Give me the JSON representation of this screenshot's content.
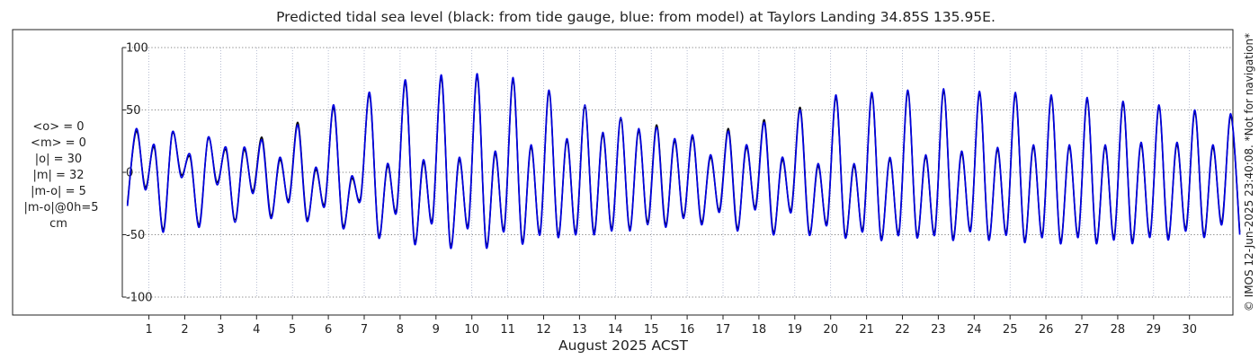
{
  "chart_data": {
    "type": "line",
    "title": "Predicted tidal sea level (black: from tide gauge, blue: from model) at Taylors Landing 34.85S 135.95E.",
    "xlabel": "August 2025 ACST",
    "ylabel": "",
    "xlim": [
      0.35,
      31.5
    ],
    "ylim": [
      -100,
      100
    ],
    "y_ticks": [
      -100,
      -50,
      0,
      50,
      100
    ],
    "x_ticks": [
      1,
      2,
      3,
      4,
      5,
      6,
      7,
      8,
      9,
      10,
      11,
      12,
      13,
      14,
      15,
      16,
      17,
      18,
      19,
      20,
      21,
      22,
      23,
      24,
      25,
      26,
      27,
      28,
      29,
      30
    ],
    "grid": true,
    "units": "cm",
    "series": [
      {
        "color": "#000000",
        "x": [
          0.4,
          0.65,
          0.9,
          1.15,
          1.4,
          1.65,
          1.9,
          2.15,
          2.4,
          2.65,
          2.9,
          3.15,
          3.4,
          3.65,
          3.9,
          4.15,
          4.4,
          4.65,
          4.9,
          5.15,
          5.4,
          5.65,
          5.9,
          6.15,
          6.4,
          6.65,
          6.9,
          7.15,
          7.4,
          7.65,
          7.9,
          8.15,
          8.4,
          8.65,
          8.9,
          9.15,
          9.4,
          9.65,
          9.9,
          10.15,
          10.4,
          10.65,
          10.9,
          11.15,
          11.4,
          11.65,
          11.9,
          12.15,
          12.4,
          12.65,
          12.9,
          13.15,
          13.4,
          13.65,
          13.9,
          14.15,
          14.4,
          14.65,
          14.9,
          15.15,
          15.4,
          15.65,
          15.9,
          16.15,
          16.4,
          16.65,
          16.9,
          17.15,
          17.4,
          17.65,
          17.9,
          18.15,
          18.4,
          18.65,
          18.9,
          19.15,
          19.4,
          19.65,
          19.9,
          20.15,
          20.4,
          20.65,
          20.9,
          21.15,
          21.4,
          21.65,
          21.9,
          22.15,
          22.4,
          22.65,
          22.9,
          23.15,
          23.4,
          23.65,
          23.9,
          24.15,
          24.4,
          24.65,
          24.9,
          25.15,
          25.4,
          25.65,
          25.9,
          26.15,
          26.4,
          26.65,
          26.9,
          27.15,
          27.4,
          27.65,
          27.9,
          28.15,
          28.4,
          28.65,
          28.9,
          29.15,
          29.4,
          29.65,
          29.9,
          30.15,
          30.4,
          30.65,
          30.9,
          31.15,
          31.4
        ],
        "values": [
          -25,
          33,
          -12,
          20,
          -46,
          31,
          -2,
          12,
          -42,
          27,
          -8,
          18,
          -38,
          18,
          -15,
          28,
          -35,
          10,
          -22,
          40,
          -37,
          2,
          -25,
          52,
          -42,
          -5,
          -20,
          62,
          -50,
          5,
          -30,
          72,
          -55,
          8,
          -38,
          76,
          -58,
          10,
          -42,
          77,
          -58,
          15,
          -45,
          74,
          -55,
          20,
          -48,
          64,
          -50,
          25,
          -48,
          52,
          -48,
          30,
          -45,
          42,
          -45,
          33,
          -40,
          38,
          -42,
          25,
          -35,
          28,
          -40,
          12,
          -30,
          35,
          -45,
          20,
          -28,
          42,
          -48,
          10,
          -30,
          52,
          -48,
          5,
          -40,
          60,
          -50,
          5,
          -45,
          62,
          -52,
          10,
          -48,
          64,
          -50,
          12,
          -48,
          65,
          -52,
          15,
          -45,
          63,
          -52,
          18,
          -48,
          62,
          -54,
          20,
          -50,
          60,
          -55,
          20,
          -50,
          58,
          -55,
          20,
          -52,
          55,
          -55,
          22,
          -50,
          52,
          -52,
          22,
          -45,
          48,
          -50,
          20,
          -40,
          45,
          -48
        ]
      },
      {
        "color": "#0000e0",
        "x": [
          0.4,
          0.65,
          0.9,
          1.15,
          1.4,
          1.65,
          1.9,
          2.15,
          2.4,
          2.65,
          2.9,
          3.15,
          3.4,
          3.65,
          3.9,
          4.15,
          4.4,
          4.65,
          4.9,
          5.15,
          5.4,
          5.65,
          5.9,
          6.15,
          6.4,
          6.65,
          6.9,
          7.15,
          7.4,
          7.65,
          7.9,
          8.15,
          8.4,
          8.65,
          8.9,
          9.15,
          9.4,
          9.65,
          9.9,
          10.15,
          10.4,
          10.65,
          10.9,
          11.15,
          11.4,
          11.65,
          11.9,
          12.15,
          12.4,
          12.65,
          12.9,
          13.15,
          13.4,
          13.65,
          13.9,
          14.15,
          14.4,
          14.65,
          14.9,
          15.15,
          15.4,
          15.65,
          15.9,
          16.15,
          16.4,
          16.65,
          16.9,
          17.15,
          17.4,
          17.65,
          17.9,
          18.15,
          18.4,
          18.65,
          18.9,
          19.15,
          19.4,
          19.65,
          19.9,
          20.15,
          20.4,
          20.65,
          20.9,
          21.15,
          21.4,
          21.65,
          21.9,
          22.15,
          22.4,
          22.65,
          22.9,
          23.15,
          23.4,
          23.65,
          23.9,
          24.15,
          24.4,
          24.65,
          24.9,
          25.15,
          25.4,
          25.65,
          25.9,
          26.15,
          26.4,
          26.65,
          26.9,
          27.15,
          27.4,
          27.65,
          27.9,
          28.15,
          28.4,
          28.65,
          28.9,
          29.15,
          29.4,
          29.65,
          29.9,
          30.15,
          30.4,
          30.65,
          30.9,
          31.15,
          31.4
        ],
        "values": [
          -27,
          35,
          -14,
          22,
          -48,
          32,
          -4,
          14,
          -44,
          28,
          -10,
          20,
          -40,
          20,
          -17,
          26,
          -37,
          12,
          -24,
          38,
          -39,
          4,
          -27,
          54,
          -44,
          -3,
          -22,
          64,
          -52,
          7,
          -32,
          74,
          -57,
          10,
          -40,
          78,
          -60,
          12,
          -44,
          79,
          -60,
          17,
          -47,
          76,
          -57,
          22,
          -50,
          66,
          -52,
          27,
          -50,
          54,
          -50,
          32,
          -47,
          44,
          -47,
          35,
          -42,
          36,
          -44,
          27,
          -37,
          30,
          -42,
          14,
          -32,
          33,
          -47,
          22,
          -30,
          40,
          -50,
          12,
          -32,
          50,
          -50,
          7,
          -42,
          62,
          -52,
          7,
          -47,
          64,
          -54,
          12,
          -50,
          66,
          -52,
          14,
          -50,
          67,
          -54,
          17,
          -47,
          65,
          -54,
          20,
          -50,
          64,
          -56,
          22,
          -52,
          62,
          -57,
          22,
          -52,
          60,
          -57,
          22,
          -54,
          57,
          -57,
          24,
          -52,
          54,
          -54,
          24,
          -47,
          50,
          -52,
          22,
          -42,
          47,
          -50
        ]
      }
    ]
  },
  "stats": {
    "lines": [
      "<o> = 0",
      "<m> = 0",
      "|o| = 30",
      "|m| = 32",
      "|m-o| = 5",
      "|m-o|@0h=5",
      "cm"
    ]
  },
  "side_note": "© IMOS 12-Jun-2025 23:40:08. *Not for navigation*"
}
